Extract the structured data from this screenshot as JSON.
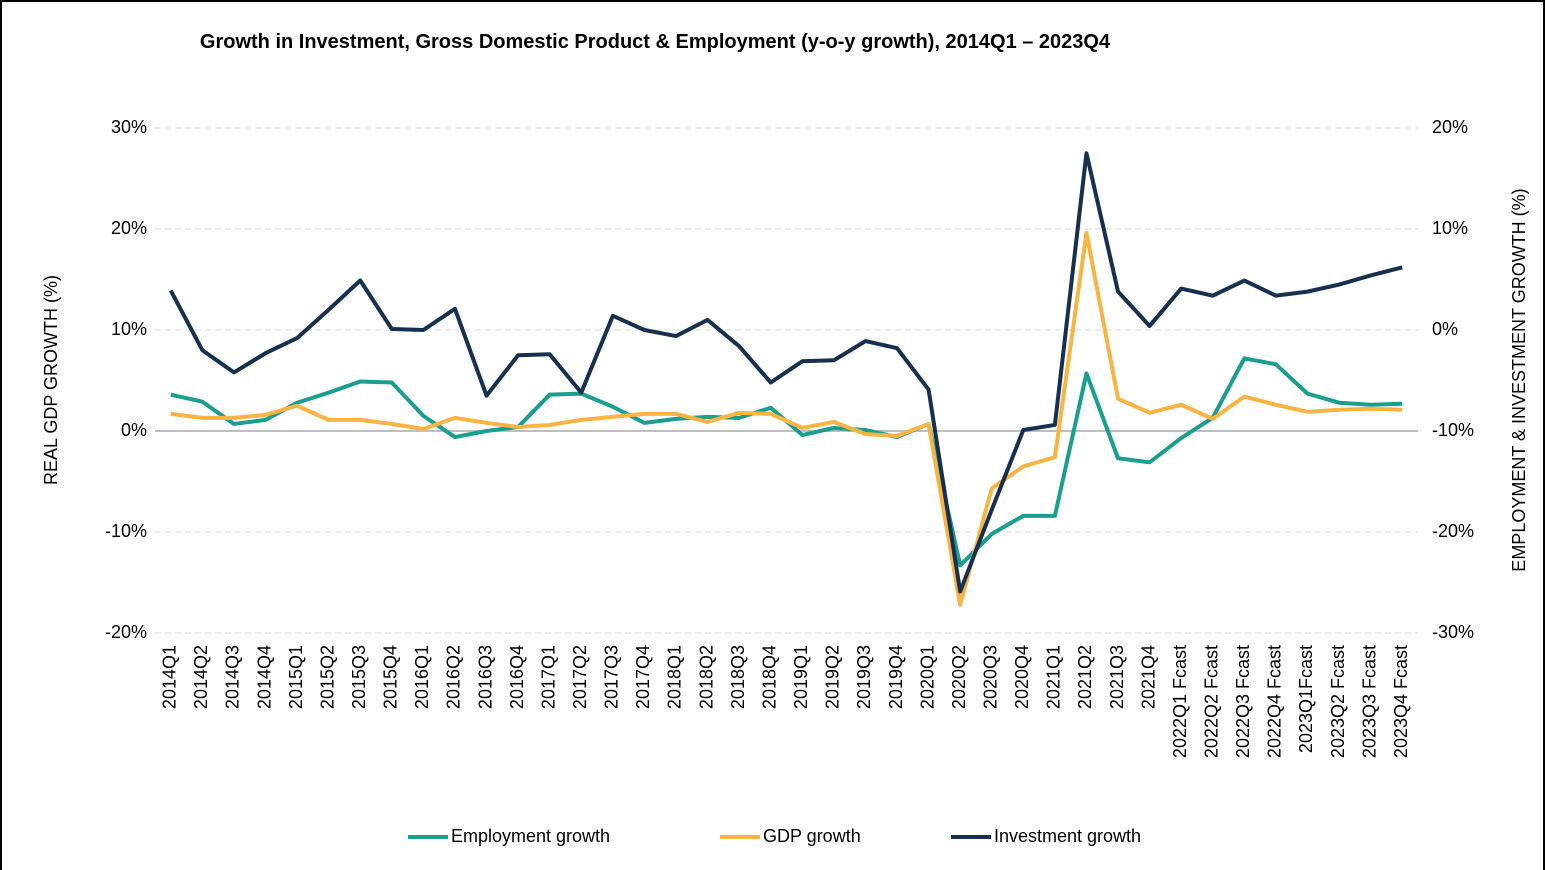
{
  "chart_data": {
    "type": "line",
    "title": "Growth in Investment, Gross Domestic Product & Employment (y-o-y growth), 2014Q1 – 2023Q4",
    "y_label": "REAL GDP GROWTH (%)",
    "y2_label": "EMPLOYMENT & INVESTMENT GROWTH (%)",
    "categories": [
      "2014Q1",
      "2014Q2",
      "2014Q3",
      "2014Q4",
      "2015Q1",
      "2015Q2",
      "2015Q3",
      "2015Q4",
      "2016Q1",
      "2016Q2",
      "2016Q3",
      "2016Q4",
      "2017Q1",
      "2017Q2",
      "2017Q3",
      "2017Q4",
      "2018Q1",
      "2018Q2",
      "2018Q3",
      "2018Q4",
      "2019Q1",
      "2019Q2",
      "2019Q3",
      "2019Q4",
      "2020Q1",
      "2020Q2",
      "2020Q3",
      "2020Q4",
      "2021Q1",
      "2021Q2",
      "2021Q3",
      "2021Q4",
      "2022Q1 Fcast",
      "2022Q2 Fcast",
      "2022Q3 Fcast",
      "2022Q4 Fcast",
      "2023Q1Fcast",
      "2023Q2 Fcast",
      "2023Q3 Fcast",
      "2023Q4 Fcast"
    ],
    "series": [
      {
        "name": "Employment growth",
        "color": "#1a9e8f",
        "axis": "y2",
        "values": [
          -6.4,
          -7.1,
          -9.3,
          -8.9,
          -7.2,
          -6.2,
          -5.1,
          -5.2,
          -8.5,
          -10.6,
          -10.0,
          -9.6,
          -6.4,
          -6.3,
          -7.6,
          -9.2,
          -8.8,
          -8.6,
          -8.7,
          -7.7,
          -10.4,
          -9.7,
          -9.9,
          -10.6,
          -9.3,
          -23.3,
          -20.2,
          -18.4,
          -18.4,
          -4.3,
          -12.7,
          -13.1,
          -10.7,
          -8.7,
          -2.8,
          -3.4,
          -6.3,
          -7.2,
          -7.4,
          -7.3
        ]
      },
      {
        "name": "GDP growth",
        "color": "#f9b444",
        "axis": "y",
        "values": [
          1.7,
          1.3,
          1.3,
          1.6,
          2.5,
          1.1,
          1.1,
          0.7,
          0.2,
          1.3,
          0.8,
          0.4,
          0.6,
          1.1,
          1.4,
          1.7,
          1.7,
          0.9,
          1.8,
          1.7,
          0.3,
          0.9,
          -0.3,
          -0.5,
          0.7,
          -17.2,
          -5.7,
          -3.5,
          -2.6,
          19.6,
          3.2,
          1.8,
          2.6,
          1.2,
          3.4,
          2.6,
          1.9,
          2.1,
          2.2,
          2.1
        ]
      },
      {
        "name": "Investment growth",
        "color": "#17304f",
        "axis": "y2",
        "values": [
          3.9,
          -2.0,
          -4.2,
          -2.3,
          -0.8,
          2.0,
          4.9,
          0.1,
          0.0,
          2.1,
          -6.5,
          -2.5,
          -2.4,
          -6.2,
          1.4,
          0.0,
          -0.6,
          1.0,
          -1.6,
          -5.2,
          -3.1,
          -3.0,
          -1.1,
          -1.8,
          -5.9,
          -25.9,
          -17.8,
          -9.9,
          -9.4,
          17.5,
          3.8,
          0.4,
          4.1,
          3.4,
          4.9,
          3.4,
          3.8,
          4.5,
          5.4,
          6.2
        ]
      }
    ],
    "ylim": [
      -20,
      30
    ],
    "yticks": [
      {
        "value": -20,
        "label": "-20%"
      },
      {
        "value": -10,
        "label": "-10%"
      },
      {
        "value": 0,
        "label": "0%"
      },
      {
        "value": 10,
        "label": "10%"
      },
      {
        "value": 20,
        "label": "20%"
      },
      {
        "value": 30,
        "label": "30%"
      }
    ],
    "y2lim": [
      -30,
      20
    ],
    "y2ticks": [
      {
        "value": -30,
        "label": "-30%"
      },
      {
        "value": -20,
        "label": "-20%"
      },
      {
        "value": -10,
        "label": "-10%"
      },
      {
        "value": 0,
        "label": "0%"
      },
      {
        "value": 10,
        "label": "10%"
      },
      {
        "value": 20,
        "label": "20%"
      }
    ],
    "grid": true,
    "legend": "bottom"
  }
}
